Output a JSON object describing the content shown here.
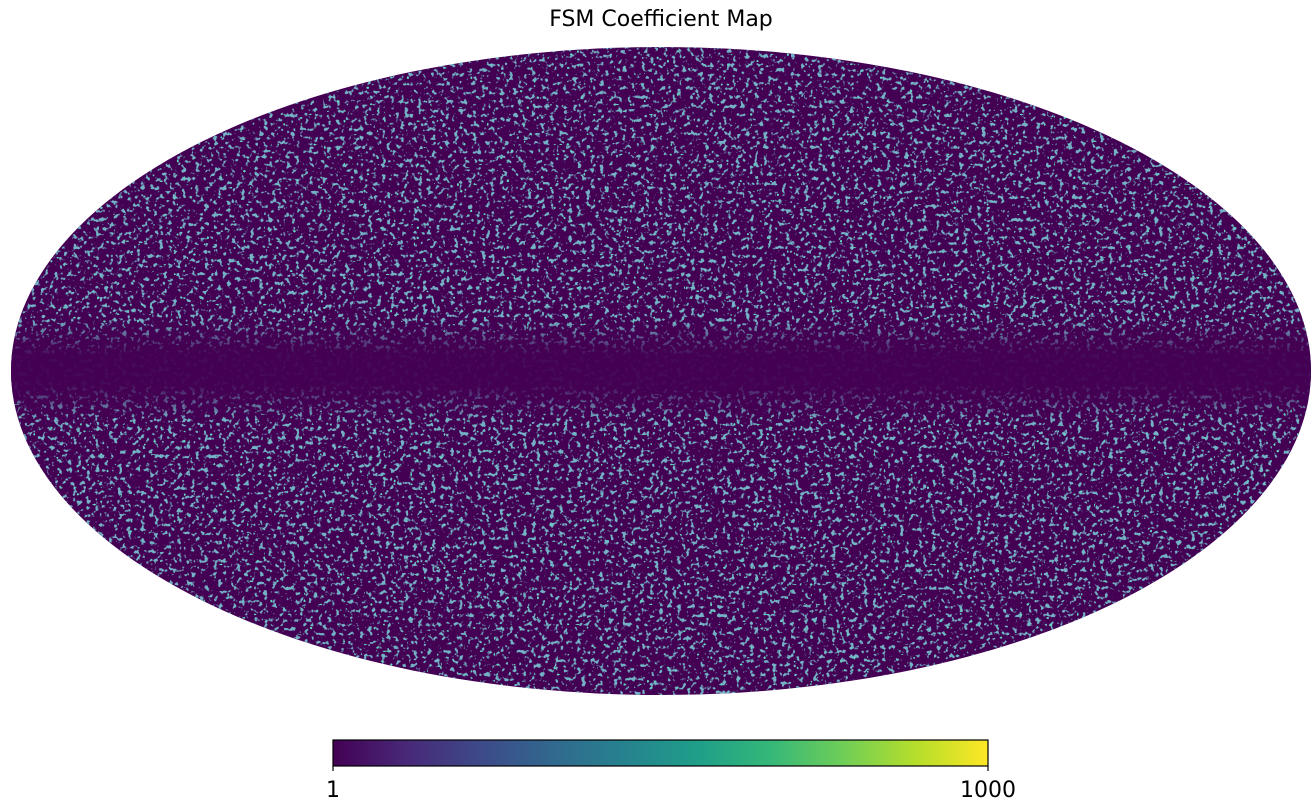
{
  "chart_data": {
    "type": "map",
    "projection": "mollweide",
    "title": "FSM Coefficient Map",
    "colormap": "viridis",
    "color_scale": "log",
    "clim": [
      1,
      1000
    ],
    "cticks": [
      1,
      1000
    ]
  }
}
